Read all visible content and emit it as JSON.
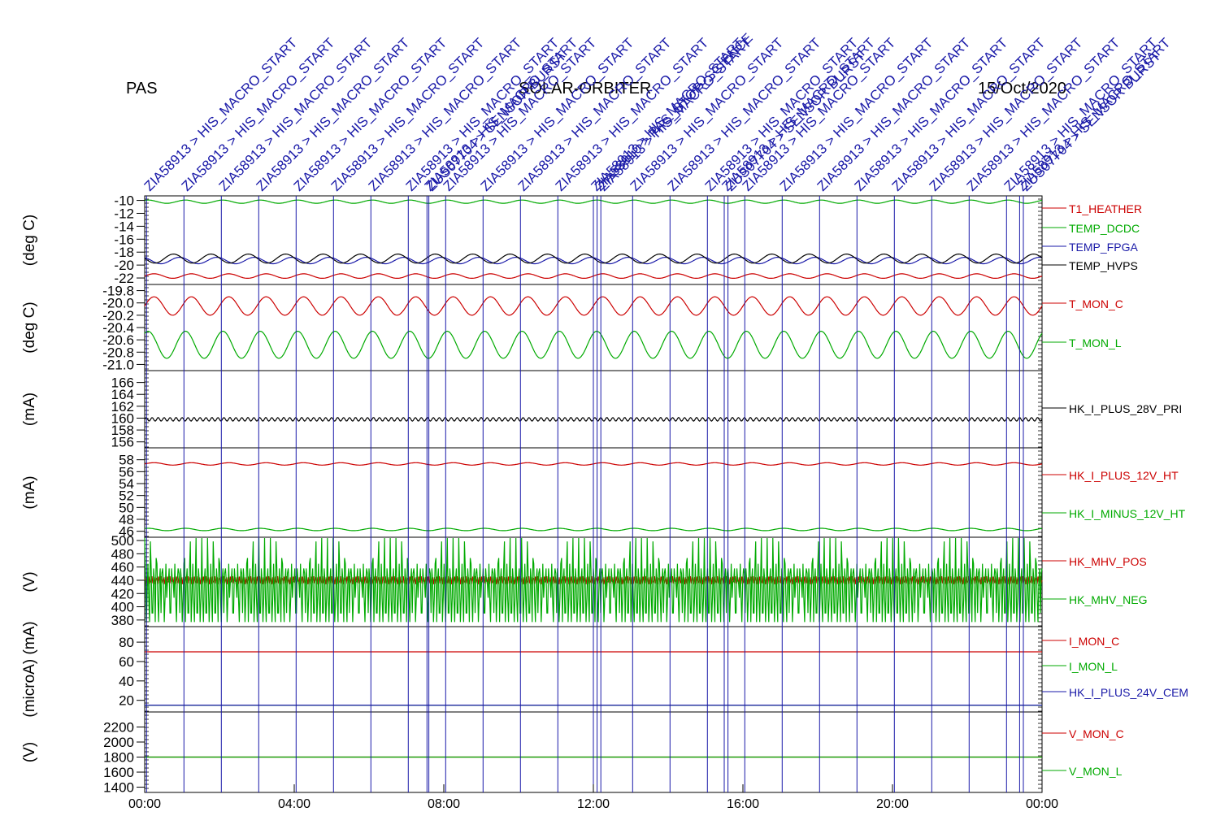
{
  "header": {
    "left": "PAS",
    "center": "SOLAR-ORBITER",
    "right": "15/Oct/2020"
  },
  "colors": {
    "red": "#cc0000",
    "green": "#00aa00",
    "blue": "#1a1aa8",
    "black": "#000000"
  },
  "chart_data": {
    "type": "line",
    "x_ticks": [
      "00:00",
      "04:00",
      "08:00",
      "12:00",
      "16:00",
      "20:00",
      "00:00"
    ],
    "xlim_hours": [
      0,
      24
    ],
    "events": [
      {
        "t": 0.05,
        "label": "ZIA58913 > HIS_MACRO_START"
      },
      {
        "t": 1.05,
        "label": "ZIA58913 > HIS_MACRO_START"
      },
      {
        "t": 2.05,
        "label": "ZIA58913 > HIS_MACRO_START"
      },
      {
        "t": 3.05,
        "label": "ZIA58913 > HIS_MACRO_START"
      },
      {
        "t": 4.05,
        "label": "ZIA58913 > HIS_MACRO_START"
      },
      {
        "t": 5.05,
        "label": "ZIA58913 > HIS_MACRO_START"
      },
      {
        "t": 6.05,
        "label": "ZIA58913 > HIS_MACRO_START"
      },
      {
        "t": 7.05,
        "label": "ZIA58913 > HIS_MACRO_START"
      },
      {
        "t": 7.55,
        "label": "ZIA58913 > HIS_MACRO_START"
      },
      {
        "t": 7.6,
        "label": "ZUS07704 > SENSOR BURST"
      },
      {
        "t": 8.05,
        "label": "ZIA58913 > HIS_MACRO_START"
      },
      {
        "t": 9.05,
        "label": "ZIA58913 > HIS_MACRO_START"
      },
      {
        "t": 10.05,
        "label": "ZIA58913 > HIS_MACRO_START"
      },
      {
        "t": 11.05,
        "label": "ZIA58913 > HIS_MACRO_START"
      },
      {
        "t": 12.0,
        "label": "ZIA58913 > HIS_MACRO_START"
      },
      {
        "t": 12.1,
        "label": "ZIA58910 > PAS_STOP_SCIENCE"
      },
      {
        "t": 12.2,
        "label": "ZIA58913 > HIS_MACRO_START"
      },
      {
        "t": 13.05,
        "label": "ZIA58913 > HIS_MACRO_START"
      },
      {
        "t": 14.05,
        "label": "ZIA58913 > HIS_MACRO_START"
      },
      {
        "t": 15.05,
        "label": "ZIA58913 > HIS_MACRO_START"
      },
      {
        "t": 15.5,
        "label": "ZIA58913 > HIS_MACRO_START"
      },
      {
        "t": 15.6,
        "label": "ZUS07704 > SENSOR BURST"
      },
      {
        "t": 16.05,
        "label": "ZIA58913 > HIS_MACRO_START"
      },
      {
        "t": 17.05,
        "label": "ZIA58913 > HIS_MACRO_START"
      },
      {
        "t": 18.05,
        "label": "ZIA58913 > HIS_MACRO_START"
      },
      {
        "t": 19.05,
        "label": "ZIA58913 > HIS_MACRO_START"
      },
      {
        "t": 20.05,
        "label": "ZIA58913 > HIS_MACRO_START"
      },
      {
        "t": 21.05,
        "label": "ZIA58913 > HIS_MACRO_START"
      },
      {
        "t": 22.05,
        "label": "ZIA58913 > HIS_MACRO_START"
      },
      {
        "t": 23.05,
        "label": "ZIA58913 > HIS_MACRO_START"
      },
      {
        "t": 23.4,
        "label": "ZIA58913 > HIS_MACRO_START"
      },
      {
        "t": 23.5,
        "label": "ZUS07704 > SENSOR BURST"
      }
    ],
    "panels": [
      {
        "ylabel": "(deg C)",
        "ylim": [
          -23,
          -9.3
        ],
        "ticks": [
          "-10",
          "-12",
          "-14",
          "-16",
          "-18",
          "-20",
          "-22"
        ],
        "series": [
          {
            "name": "T1_HEATHER",
            "color": "red",
            "mean": -21.7,
            "amp": 0.35,
            "cycles": 24
          },
          {
            "name": "TEMP_DCDC",
            "color": "green",
            "mean": -10.2,
            "amp": 0.25,
            "cycles": 24
          },
          {
            "name": "TEMP_FPGA",
            "color": "blue",
            "mean": -19.3,
            "amp": 0.5,
            "cycles": 24
          },
          {
            "name": "TEMP_HVPS",
            "color": "black",
            "mean": -19.0,
            "amp": 0.7,
            "cycles": 24
          }
        ]
      },
      {
        "ylabel": "(deg C)",
        "ylim": [
          -21.1,
          -19.7
        ],
        "ticks": [
          "-19.8",
          "-20.0",
          "-20.2",
          "-20.4",
          "-20.6",
          "-20.8",
          "-21.0"
        ],
        "series": [
          {
            "name": "T_MON_C",
            "color": "red",
            "mean": -20.05,
            "amp": 0.15,
            "cycles": 24
          },
          {
            "name": "T_MON_L",
            "color": "green",
            "mean": -20.68,
            "amp": 0.22,
            "cycles": 24
          }
        ]
      },
      {
        "ylabel": "(mA)",
        "ylim": [
          155,
          168
        ],
        "ticks": [
          "166",
          "164",
          "162",
          "160",
          "158",
          "156"
        ],
        "series": [
          {
            "name": "HK_I_PLUS_28V_PRI",
            "color": "black",
            "mean": 159.8,
            "amp": 0.3,
            "cycles": 150
          }
        ]
      },
      {
        "ylabel": "(mA)",
        "ylim": [
          45,
          60
        ],
        "ticks": [
          "58",
          "56",
          "54",
          "52",
          "50",
          "48",
          "46"
        ],
        "series": [
          {
            "name": "HK_I_PLUS_12V_HT",
            "color": "red",
            "mean": 57.3,
            "amp": 0.2,
            "cycles": 24
          },
          {
            "name": "HK_I_MINUS_12V_HT",
            "color": "green",
            "mean": 46.3,
            "amp": 0.2,
            "cycles": 24
          }
        ]
      },
      {
        "ylabel": "(V)",
        "ylim": [
          370,
          505
        ],
        "ticks": [
          "500",
          "480",
          "460",
          "440",
          "420",
          "400",
          "380"
        ],
        "series": [
          {
            "name": "HK_MHV_POS",
            "color": "red",
            "mean": 440,
            "amp": 6,
            "cycles": 400
          },
          {
            "name": "HK_MHV_NEG",
            "color": "green",
            "mean": 420,
            "amp": 45,
            "cycles": 300
          }
        ]
      },
      {
        "ylabel": "(microA) (mA)",
        "ylim": [
          8,
          96
        ],
        "ticks": [
          "80",
          "60",
          "40",
          "20"
        ],
        "series": [
          {
            "name": "I_MON_C",
            "color": "red",
            "mean": 70,
            "amp": 0,
            "cycles": 0
          },
          {
            "name": "I_MON_L",
            "color": "green",
            "mean": 15,
            "amp": 0,
            "cycles": 0
          },
          {
            "name": "HK_I_PLUS_24V_CEM",
            "color": "blue",
            "mean": 15,
            "amp": 0,
            "cycles": 0
          }
        ]
      },
      {
        "ylabel": "(V)",
        "ylim": [
          1330,
          2400
        ],
        "ticks": [
          "2200",
          "2000",
          "1800",
          "1600",
          "1400"
        ],
        "series": [
          {
            "name": "V_MON_C",
            "color": "red",
            "mean": 1800,
            "amp": 0,
            "cycles": 0
          },
          {
            "name": "V_MON_L",
            "color": "green",
            "mean": 1800,
            "amp": 0,
            "cycles": 0
          }
        ]
      }
    ]
  }
}
